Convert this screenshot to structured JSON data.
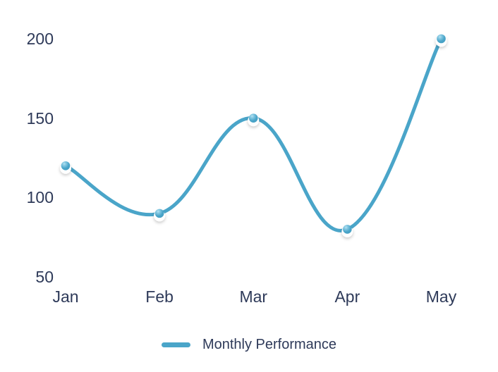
{
  "chart_data": {
    "type": "line",
    "title": "",
    "categories": [
      "Jan",
      "Feb",
      "Mar",
      "Apr",
      "May"
    ],
    "series": [
      {
        "name": "Monthly Performance",
        "values": [
          120,
          90,
          150,
          80,
          200
        ],
        "color": "#4AA5C9"
      }
    ],
    "ylim": [
      50,
      200
    ],
    "yticks": [
      200,
      150,
      100,
      50
    ],
    "grid": false,
    "axis_lines": false,
    "smooth": true,
    "marker_style": "sphere-dot-with-white-halo",
    "legend_position": "bottom"
  },
  "colors": {
    "line": "#4AA5C9",
    "marker_highlight": "#B5E2F1",
    "marker_halo": "#FFFFFF",
    "text": "#2E3A59",
    "background": "#FFFFFF"
  }
}
